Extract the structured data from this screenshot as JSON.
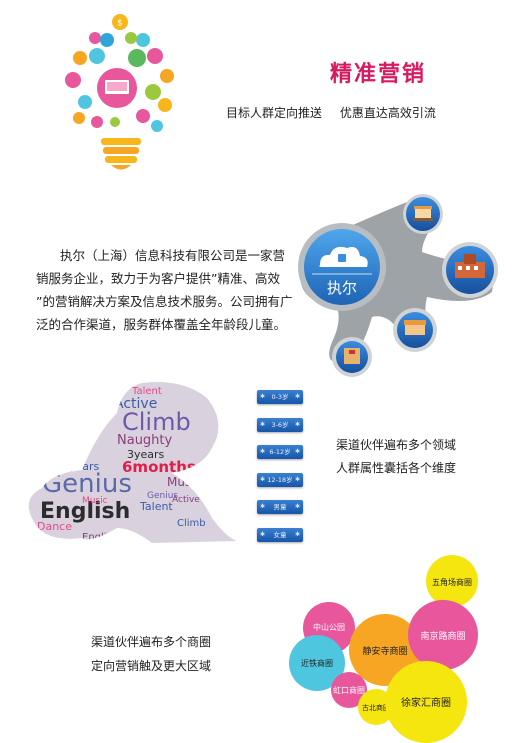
{
  "header": {
    "title": "精准营销",
    "subtitle": "目标人群定向推送 优惠直达高效引流"
  },
  "intro": {
    "text": "执尔（上海）信息科技有限公司是一家营销服务企业，致力于为客户提供”精准、高效 ”的营销解决方案及信息技术服务。公司拥有广泛的合作渠道，服务群体覆盖全年龄段儿童。"
  },
  "network": {
    "hub_label": "执尔",
    "node_icons": [
      "bank-icon",
      "school-icon",
      "store-icon",
      "hospital-icon"
    ]
  },
  "wordcloud": {
    "words": [
      "Talent",
      "Active",
      "Climb",
      "Naughty",
      "3years",
      "6months",
      "Genius",
      "Music",
      "8years",
      "English",
      "Dance",
      "Talent",
      "Active",
      "Genius",
      "Music",
      "Climb",
      "English"
    ]
  },
  "age_groups": {
    "items": [
      "0-3岁",
      "3-6岁",
      "6-12岁",
      "12-18岁",
      "男童",
      "女童"
    ]
  },
  "section2": {
    "line1": "渠道伙伴遍布多个领域",
    "line2": "人群属性囊括各个维度"
  },
  "section3": {
    "line1": "渠道伙伴遍布多个商圈",
    "line2": "定向营销触及更大区域"
  },
  "districts": {
    "items": [
      "五角场商圈",
      "中山公园",
      "静安寺商圈",
      "南京路商圈",
      "近铁商圈",
      "虹口商圈",
      "古北商圈",
      "徐家汇商圈"
    ]
  },
  "colors": {
    "accent": "#d81b60",
    "yellow": "#f5e60f",
    "orange": "#f6a623",
    "pink": "#e8569c",
    "cyan": "#4fc6e0",
    "blue": "#1e63b5"
  }
}
